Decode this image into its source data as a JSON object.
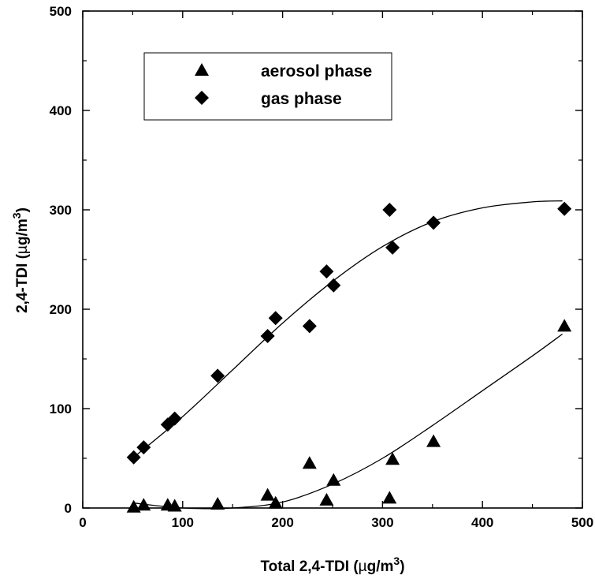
{
  "chart_data": {
    "type": "scatter",
    "title": "",
    "xlabel": "Total 2,4-TDI (µg/m³)",
    "xlabel_parts": {
      "main": "Total 2,4-TDI (",
      "mu": "µ",
      "unit": "g/m",
      "sup": "3",
      "close": ")"
    },
    "ylabel": "2,4-TDI (µg/m³)",
    "ylabel_parts": {
      "main": "2,4-TDI (",
      "mu": "µ",
      "unit": "g/m",
      "sup": "3",
      "close": ")"
    },
    "xlim": [
      0,
      500
    ],
    "ylim": [
      0,
      500
    ],
    "xticks": [
      "0",
      "100",
      "200",
      "300",
      "400",
      "500"
    ],
    "yticks": [
      "0",
      "100",
      "200",
      "300",
      "400",
      "500"
    ],
    "grid": false,
    "legend_position": "top-left",
    "series": [
      {
        "name": "aerosol phase",
        "marker": "triangle",
        "x": [
          51,
          61,
          85,
          92,
          135,
          185,
          193,
          227,
          244,
          251,
          307,
          310,
          351,
          482
        ],
        "y": [
          1,
          3,
          3,
          2,
          4,
          13,
          5,
          45,
          8,
          28,
          10,
          49,
          67,
          183
        ],
        "fit": [
          [
            51,
            5
          ],
          [
            100,
            0
          ],
          [
            150,
            0
          ],
          [
            200,
            6
          ],
          [
            250,
            24
          ],
          [
            300,
            50
          ],
          [
            350,
            83
          ],
          [
            400,
            118
          ],
          [
            450,
            153
          ],
          [
            480,
            175
          ]
        ]
      },
      {
        "name": "gas phase",
        "marker": "diamond",
        "x": [
          51,
          61,
          85,
          92,
          135,
          185,
          193,
          227,
          244,
          251,
          307,
          310,
          351,
          482
        ],
        "y": [
          51,
          61,
          84,
          90,
          133,
          173,
          191,
          183,
          238,
          224,
          300,
          262,
          287,
          301
        ],
        "fit": [
          [
            51,
            51
          ],
          [
            100,
            92
          ],
          [
            150,
            139
          ],
          [
            200,
            186
          ],
          [
            250,
            228
          ],
          [
            300,
            263
          ],
          [
            350,
            288
          ],
          [
            400,
            302
          ],
          [
            450,
            308
          ],
          [
            480,
            309
          ]
        ]
      }
    ]
  }
}
